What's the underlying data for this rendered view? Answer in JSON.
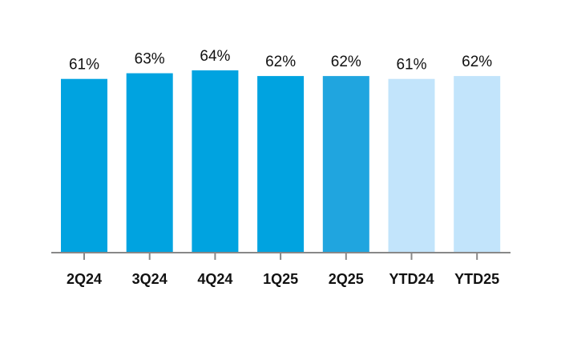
{
  "chart_data": {
    "type": "bar",
    "categories": [
      "2Q24",
      "3Q24",
      "4Q24",
      "1Q25",
      "2Q25",
      "YTD24",
      "YTD25"
    ],
    "values": [
      61,
      63,
      64,
      62,
      62,
      61,
      62
    ],
    "value_labels": [
      "61%",
      "63%",
      "64%",
      "62%",
      "62%",
      "61%",
      "62%"
    ],
    "colors": [
      "#00a3e0",
      "#00a3e0",
      "#00a3e0",
      "#00a3e0",
      "#20a5df",
      "#c2e4fb",
      "#c2e4fb"
    ],
    "axis_color": "#888888",
    "title": "",
    "xlabel": "",
    "ylabel": "",
    "ylim": [
      0,
      64
    ],
    "grid": false,
    "legend": "none"
  }
}
